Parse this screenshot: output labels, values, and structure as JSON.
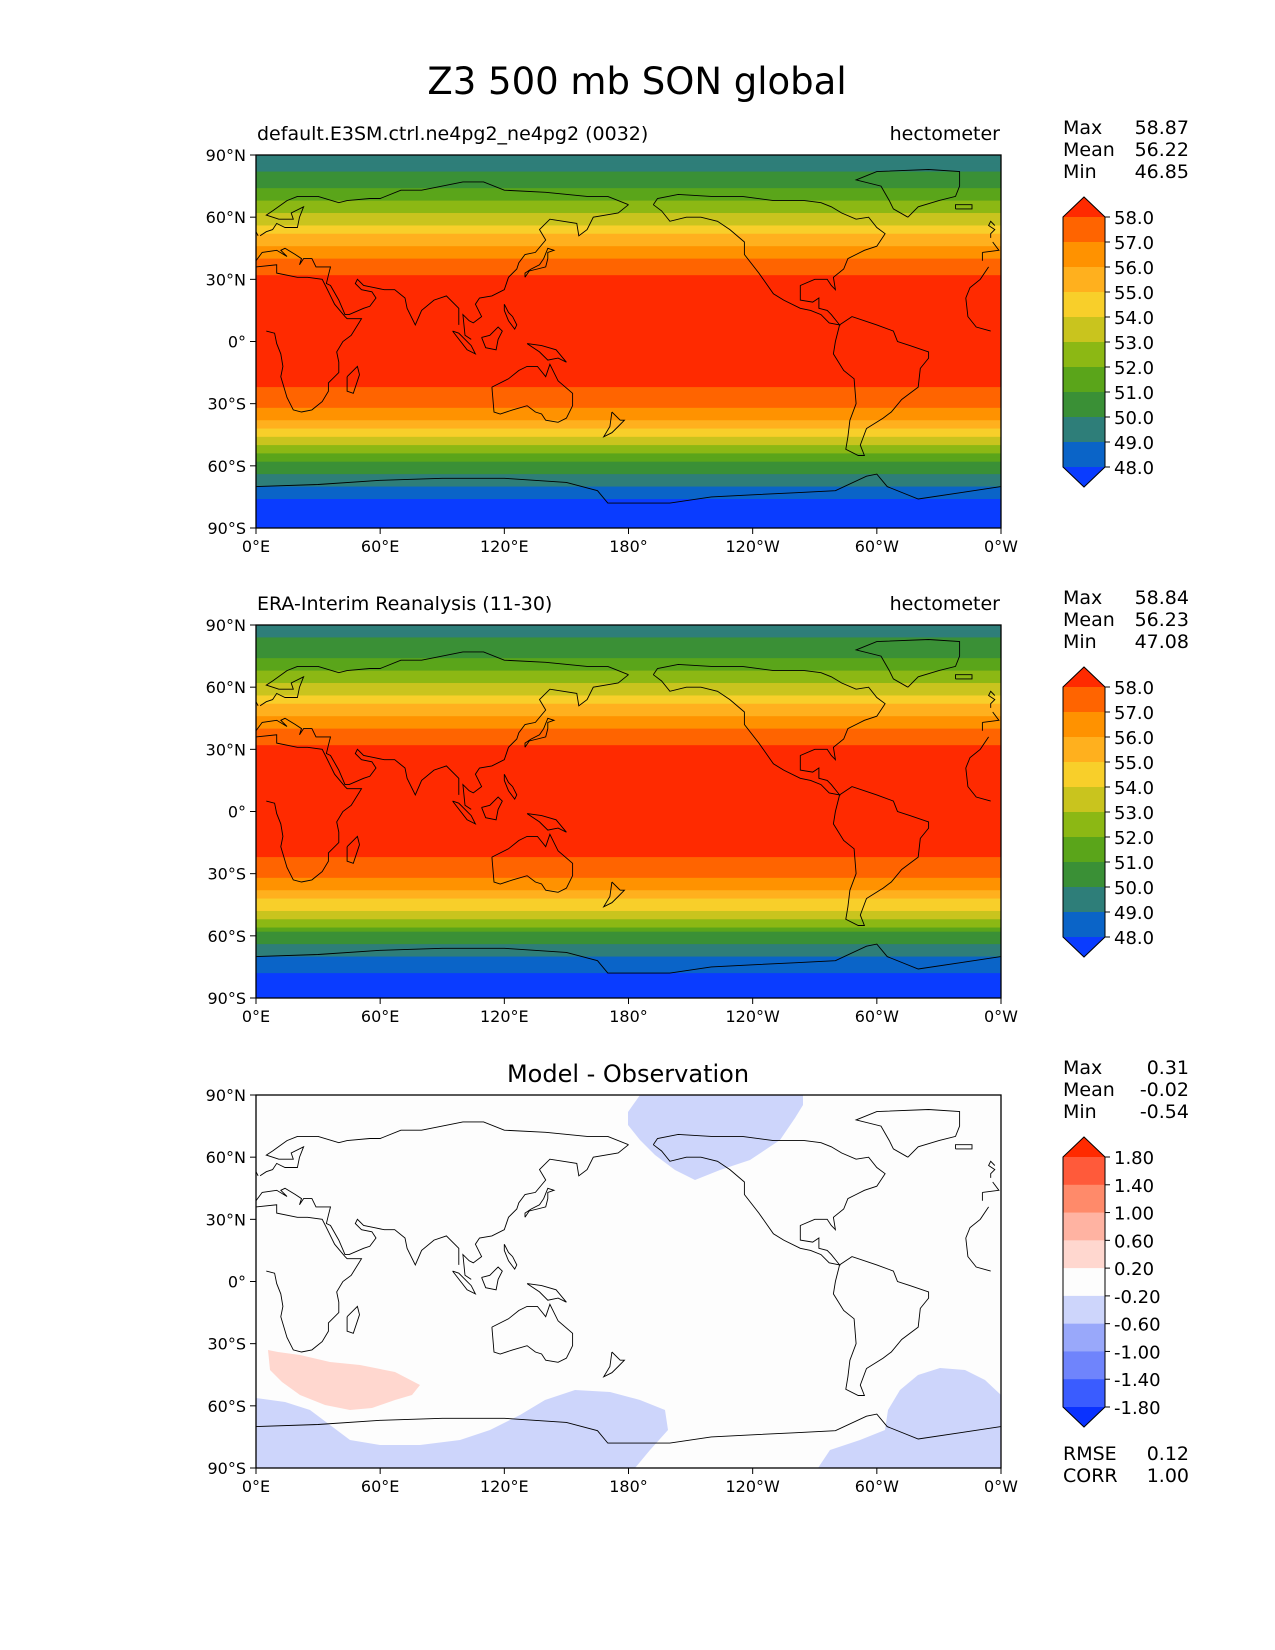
{
  "figure": {
    "title": "Z3 500 mb SON global"
  },
  "chart_data": [
    {
      "type": "heatmap",
      "panel": "test",
      "title_left": "default.E3SM.ctrl.ne4pg2_ne4pg2 (0032)",
      "title_center": "",
      "units": "hectometer",
      "stats": [
        {
          "label": "Max",
          "value": "58.87"
        },
        {
          "label": "Mean",
          "value": "56.22"
        },
        {
          "label": "Min",
          "value": "46.85"
        }
      ],
      "extra_stats": [],
      "colorbar": {
        "levels": [
          "58.0",
          "57.0",
          "56.0",
          "55.0",
          "54.0",
          "53.0",
          "52.0",
          "51.0",
          "50.0",
          "49.0",
          "48.0"
        ],
        "colors": [
          "#ff2a00",
          "#ff6400",
          "#ff9200",
          "#ffb01e",
          "#f8cf2a",
          "#c9c41e",
          "#8cb814",
          "#5aa51a",
          "#3a9036",
          "#2e7e79",
          "#0a64c8",
          "#0a3cff"
        ],
        "extend": "both"
      },
      "x_ticks": [
        "0°E",
        "60°E",
        "120°E",
        "180°",
        "120°W",
        "60°W",
        "0°W"
      ],
      "y_ticks": [
        "90°N",
        "60°N",
        "30°N",
        "0°",
        "30°S",
        "60°S",
        "90°S"
      ],
      "x_range": [
        0,
        360
      ],
      "y_range": [
        -90,
        90
      ],
      "field": {
        "lat": [
          90,
          75,
          60,
          45,
          30,
          15,
          0,
          -15,
          -30,
          -45,
          -60,
          -75,
          -90
        ],
        "values": [
          49.2,
          50.8,
          53.2,
          56.2,
          58.3,
          58.6,
          58.6,
          58.5,
          57.5,
          54.5,
          50.5,
          48.0,
          47.0
        ]
      }
    },
    {
      "type": "heatmap",
      "panel": "reference",
      "title_left": "ERA-Interim Reanalysis (11-30)",
      "title_center": "",
      "units": "hectometer",
      "stats": [
        {
          "label": "Max",
          "value": "58.84"
        },
        {
          "label": "Mean",
          "value": "56.23"
        },
        {
          "label": "Min",
          "value": "47.08"
        }
      ],
      "extra_stats": [],
      "colorbar": {
        "levels": [
          "58.0",
          "57.0",
          "56.0",
          "55.0",
          "54.0",
          "53.0",
          "52.0",
          "51.0",
          "50.0",
          "49.0",
          "48.0"
        ],
        "colors": [
          "#ff2a00",
          "#ff6400",
          "#ff9200",
          "#ffb01e",
          "#f8cf2a",
          "#c9c41e",
          "#8cb814",
          "#5aa51a",
          "#3a9036",
          "#2e7e79",
          "#0a64c8",
          "#0a3cff"
        ],
        "extend": "both"
      },
      "x_ticks": [
        "0°E",
        "60°E",
        "120°E",
        "180°",
        "120°W",
        "60°W",
        "0°W"
      ],
      "y_ticks": [
        "90°N",
        "60°N",
        "30°N",
        "0°",
        "30°S",
        "60°S",
        "90°S"
      ],
      "x_range": [
        0,
        360
      ],
      "y_range": [
        -90,
        90
      ],
      "field": {
        "lat": [
          90,
          75,
          60,
          45,
          30,
          15,
          0,
          -15,
          -30,
          -45,
          -60,
          -75,
          -90
        ],
        "values": [
          49.3,
          50.9,
          53.3,
          56.2,
          58.3,
          58.6,
          58.6,
          58.5,
          57.5,
          54.6,
          50.7,
          48.2,
          47.2
        ]
      }
    },
    {
      "type": "heatmap",
      "panel": "difference",
      "title_left": "",
      "title_center": "Model - Observation",
      "units": "",
      "stats": [
        {
          "label": "Max",
          "value": "0.31"
        },
        {
          "label": "Mean",
          "value": "-0.02"
        },
        {
          "label": "Min",
          "value": "-0.54"
        }
      ],
      "extra_stats": [
        {
          "label": "RMSE",
          "value": "0.12"
        },
        {
          "label": "CORR",
          "value": "1.00"
        }
      ],
      "colorbar": {
        "levels": [
          "1.80",
          "1.40",
          "1.00",
          "0.60",
          "0.20",
          "-0.20",
          "-0.60",
          "-1.00",
          "-1.40",
          "-1.80"
        ],
        "colors": [
          "#ff2a00",
          "#ff5a3a",
          "#ff8a6a",
          "#ffb3a2",
          "#ffd7cf",
          "#fdfdfd",
          "#cdd5fb",
          "#99a8fa",
          "#6f84fc",
          "#3a5cff",
          "#0a32ff"
        ],
        "extend": "both"
      },
      "x_ticks": [
        "0°E",
        "60°E",
        "120°E",
        "180°",
        "120°W",
        "60°W",
        "0°W"
      ],
      "y_ticks": [
        "90°N",
        "60°N",
        "30°N",
        "0°",
        "30°S",
        "60°S",
        "90°S"
      ],
      "x_range": [
        0,
        360
      ],
      "y_range": [
        -90,
        90
      ]
    }
  ]
}
